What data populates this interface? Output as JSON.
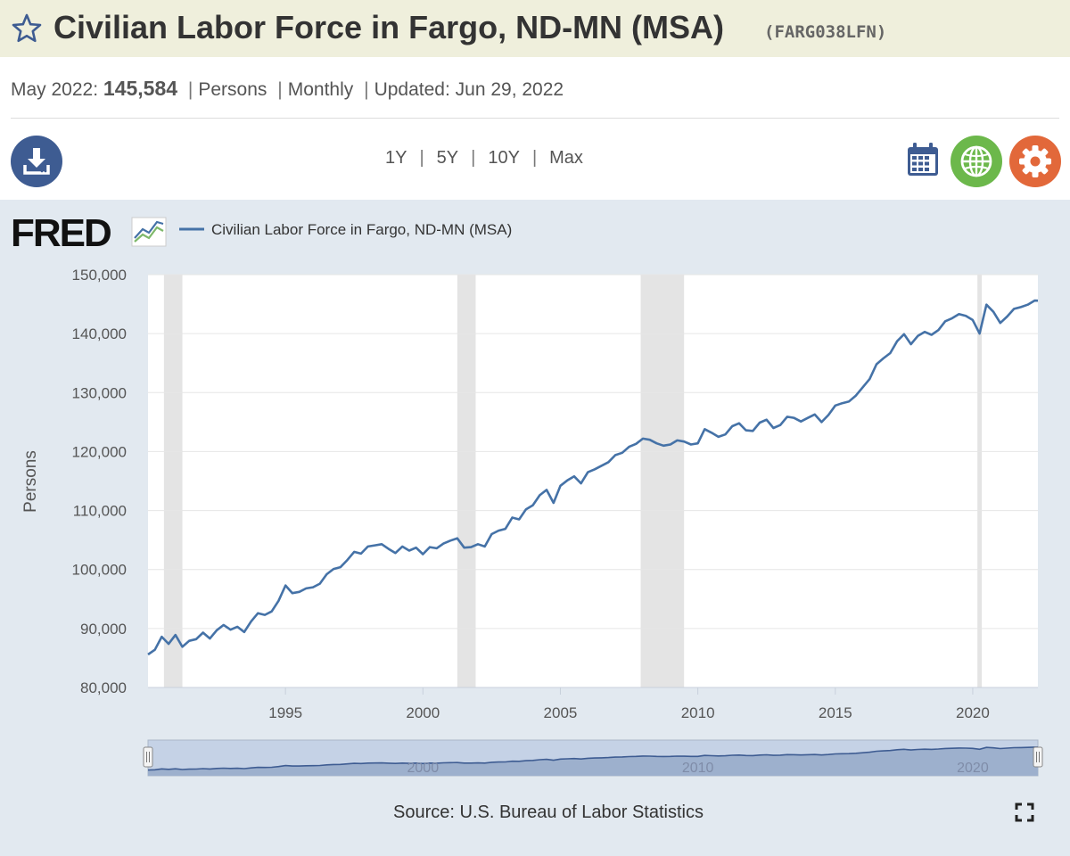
{
  "header": {
    "title": "Civilian Labor Force in Fargo, ND-MN (MSA)",
    "series_id": "(FARG038LFN)",
    "star_icon": "star-outline-icon"
  },
  "meta": {
    "period": "May 2022:",
    "value": "145,584",
    "units": "Persons",
    "frequency": "Monthly",
    "updated_label": "Updated:",
    "updated_date": "Jun 29, 2022"
  },
  "toolbar": {
    "download_icon": "download-icon",
    "ranges": [
      "1Y",
      "5Y",
      "10Y",
      "Max"
    ],
    "calendar_icon": "calendar-icon",
    "globe_icon": "globe-icon",
    "gear_icon": "gear-icon",
    "colors": {
      "download": "#3e5c92",
      "calendar": "#3e5c92",
      "globe": "#6cb84b",
      "gear": "#e2683a"
    }
  },
  "footer": {
    "source": "Source: U.S. Bureau of Labor Statistics",
    "fullscreen_icon": "fullscreen-icon"
  },
  "chart_data": {
    "type": "line",
    "logo": "FRED",
    "title": "",
    "xlabel": "",
    "ylabel": "Persons",
    "xlim": [
      1990.0,
      2022.37
    ],
    "ylim": [
      80000,
      150000
    ],
    "y_ticks": [
      80000,
      90000,
      100000,
      110000,
      120000,
      130000,
      140000,
      150000
    ],
    "y_tick_labels": [
      "80,000",
      "90,000",
      "100,000",
      "110,000",
      "120,000",
      "130,000",
      "140,000",
      "150,000"
    ],
    "x_ticks": [
      1995,
      2000,
      2005,
      2010,
      2015,
      2020
    ],
    "x_tick_labels": [
      "1995",
      "2000",
      "2005",
      "2010",
      "2015",
      "2020"
    ],
    "navigator_labels": [
      {
        "x": 2000,
        "label": "2000"
      },
      {
        "x": 2010,
        "label": "2010"
      },
      {
        "x": 2020,
        "label": "2020"
      }
    ],
    "grid": true,
    "legend_position": "top-left",
    "line_color": "#4572a7",
    "recession_color": "#e4e4e4",
    "recessions": [
      [
        1990.58,
        1991.25
      ],
      [
        2001.25,
        2001.92
      ],
      [
        2007.92,
        2009.5
      ],
      [
        2020.17,
        2020.33
      ]
    ],
    "series": [
      {
        "name": "Civilian Labor Force in Fargo, ND-MN (MSA)",
        "x": [
          1990.0,
          1990.25,
          1990.5,
          1990.75,
          1991.0,
          1991.25,
          1991.5,
          1991.75,
          1992.0,
          1992.25,
          1992.5,
          1992.75,
          1993.0,
          1993.25,
          1993.5,
          1993.75,
          1994.0,
          1994.25,
          1994.5,
          1994.75,
          1995.0,
          1995.25,
          1995.5,
          1995.75,
          1996.0,
          1996.25,
          1996.5,
          1996.75,
          1997.0,
          1997.25,
          1997.5,
          1997.75,
          1998.0,
          1998.25,
          1998.5,
          1998.75,
          1999.0,
          1999.25,
          1999.5,
          1999.75,
          2000.0,
          2000.25,
          2000.5,
          2000.75,
          2001.0,
          2001.25,
          2001.5,
          2001.75,
          2002.0,
          2002.25,
          2002.5,
          2002.75,
          2003.0,
          2003.25,
          2003.5,
          2003.75,
          2004.0,
          2004.25,
          2004.5,
          2004.75,
          2005.0,
          2005.25,
          2005.5,
          2005.75,
          2006.0,
          2006.25,
          2006.5,
          2006.75,
          2007.0,
          2007.25,
          2007.5,
          2007.75,
          2008.0,
          2008.25,
          2008.5,
          2008.75,
          2009.0,
          2009.25,
          2009.5,
          2009.75,
          2010.0,
          2010.25,
          2010.5,
          2010.75,
          2011.0,
          2011.25,
          2011.5,
          2011.75,
          2012.0,
          2012.25,
          2012.5,
          2012.75,
          2013.0,
          2013.25,
          2013.5,
          2013.75,
          2014.0,
          2014.25,
          2014.5,
          2014.75,
          2015.0,
          2015.25,
          2015.5,
          2015.75,
          2016.0,
          2016.25,
          2016.5,
          2016.75,
          2017.0,
          2017.25,
          2017.5,
          2017.75,
          2018.0,
          2018.25,
          2018.5,
          2018.75,
          2019.0,
          2019.25,
          2019.5,
          2019.75,
          2020.0,
          2020.25,
          2020.5,
          2020.75,
          2021.0,
          2021.25,
          2021.5,
          2021.75,
          2022.0,
          2022.25,
          2022.37
        ],
        "values": [
          85600,
          86400,
          88600,
          87400,
          88900,
          86900,
          87900,
          88200,
          89300,
          88300,
          89700,
          90600,
          89800,
          90300,
          89400,
          91200,
          92600,
          92300,
          92900,
          94700,
          97300,
          96000,
          96200,
          96800,
          97000,
          97600,
          99200,
          100100,
          100400,
          101600,
          103000,
          102700,
          103900,
          104100,
          104300,
          103500,
          102800,
          103900,
          103200,
          103700,
          102600,
          103800,
          103600,
          104400,
          104900,
          105300,
          103700,
          103800,
          104300,
          103900,
          106000,
          106600,
          106900,
          108800,
          108500,
          110200,
          110900,
          112600,
          113500,
          111300,
          114200,
          115100,
          115800,
          114600,
          116500,
          117000,
          117600,
          118200,
          119400,
          119800,
          120800,
          121300,
          122200,
          122000,
          121400,
          121000,
          121200,
          121900,
          121700,
          121200,
          121400,
          123800,
          123200,
          122500,
          122900,
          124300,
          124800,
          123600,
          123500,
          124900,
          125400,
          124000,
          124500,
          125900,
          125700,
          125100,
          125700,
          126300,
          125000,
          126200,
          127800,
          128200,
          128500,
          129500,
          130900,
          132300,
          134800,
          135800,
          136700,
          138700,
          139900,
          138200,
          139600,
          140300,
          139800,
          140600,
          142100,
          142600,
          143300,
          143000,
          142300,
          140000,
          144900,
          143700,
          141800,
          142900,
          144200,
          144500,
          144900,
          145600,
          145584
        ]
      }
    ]
  }
}
